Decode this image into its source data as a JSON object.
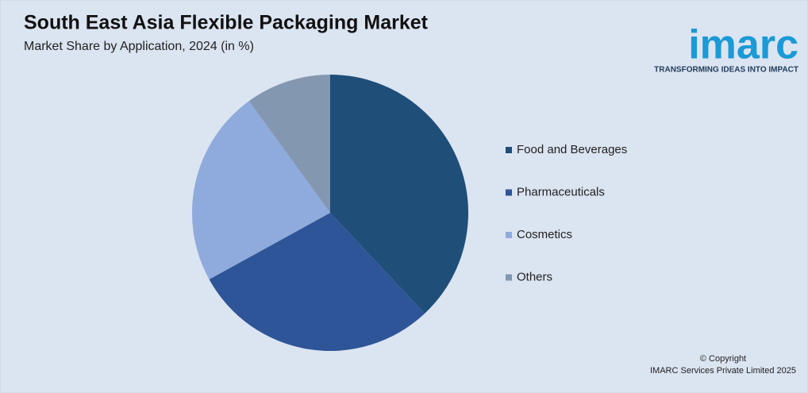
{
  "chart_data": {
    "type": "pie",
    "title": "South East Asia Flexible Packaging Market",
    "subtitle": "Market Share by Application, 2024 (in %)",
    "categories": [
      "Food and Beverages",
      "Pharmaceuticals",
      "Cosmetics",
      "Others"
    ],
    "values": [
      38,
      29,
      23,
      10
    ],
    "colors": [
      "#1f4e79",
      "#2e5597",
      "#8faadc",
      "#8497b0"
    ],
    "legend": "right"
  },
  "logo": {
    "name": "imarc",
    "tagline": "TRANSFORMING IDEAS INTO IMPACT"
  },
  "copyright": {
    "line1": "© Copyright",
    "line2": "IMARC Services Private Limited 2025"
  }
}
